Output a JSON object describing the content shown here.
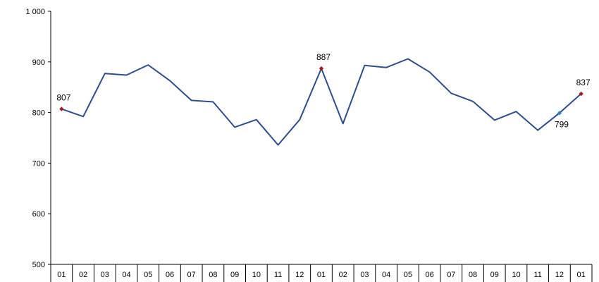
{
  "chart_data": {
    "type": "line",
    "title": "",
    "xlabel": "",
    "ylabel": "",
    "categories": [
      "01",
      "02",
      "03",
      "04",
      "05",
      "06",
      "07",
      "08",
      "09",
      "10",
      "11",
      "12",
      "01",
      "02",
      "03",
      "04",
      "05",
      "06",
      "07",
      "08",
      "09",
      "10",
      "11",
      "12",
      "01"
    ],
    "series": [
      {
        "values": [
          807,
          792,
          877,
          874,
          894,
          863,
          824,
          821,
          771,
          786,
          736,
          786,
          887,
          778,
          893,
          889,
          906,
          880,
          838,
          822,
          785,
          802,
          765,
          799,
          837
        ]
      }
    ],
    "ylim": [
      500,
      1000
    ],
    "yticks": [
      {
        "value": 500,
        "label": "500"
      },
      {
        "value": 600,
        "label": "600"
      },
      {
        "value": 700,
        "label": "700"
      },
      {
        "value": 800,
        "label": "800"
      },
      {
        "value": 900,
        "label": "900"
      },
      {
        "value": 1000,
        "label": "1 000"
      }
    ],
    "grid": false,
    "line_color": "#2e4d8c",
    "highlighted_points": [
      {
        "index": 0,
        "label": "807",
        "color": "#a01c1c",
        "position": "above"
      },
      {
        "index": 12,
        "label": "887",
        "color": "#a01c1c",
        "position": "above"
      },
      {
        "index": 23,
        "label": "799",
        "color": "#2a88c8",
        "position": "below"
      },
      {
        "index": 24,
        "label": "837",
        "color": "#a01c1c",
        "position": "above"
      }
    ]
  }
}
